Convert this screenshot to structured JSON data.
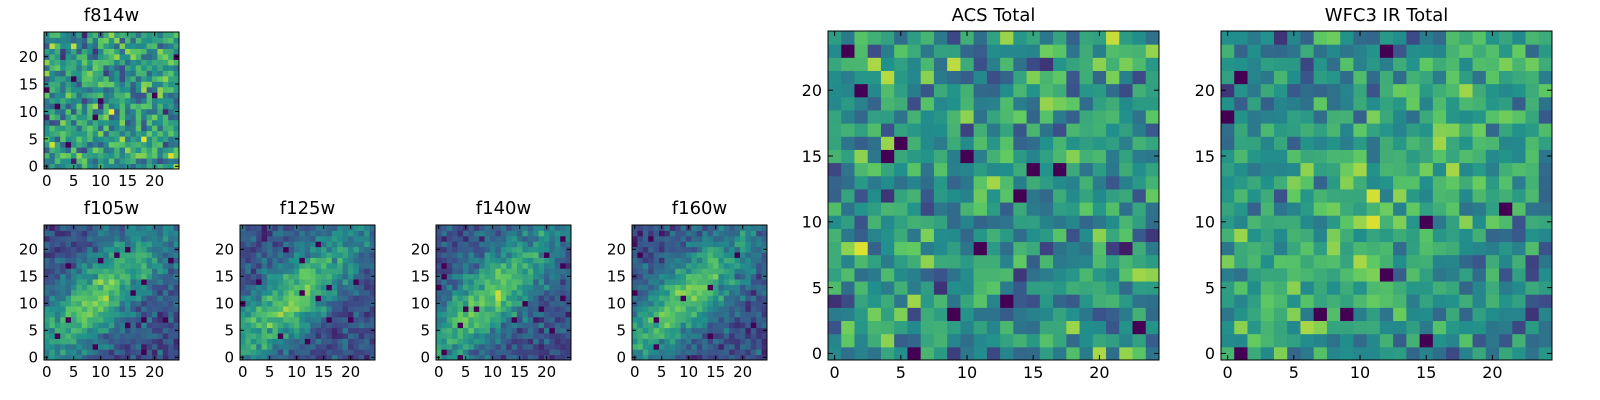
{
  "figure": {
    "colormap": "viridis",
    "colormap_stops": [
      "#440154",
      "#3b528b",
      "#21918c",
      "#5ec962",
      "#fde725"
    ]
  },
  "chart_data": [
    {
      "type": "heatmap",
      "title": "f814w",
      "grid_size": 25,
      "xlim": [
        0,
        24
      ],
      "ylim": [
        0,
        24
      ],
      "xticks": [
        0,
        5,
        10,
        15,
        20
      ],
      "yticks": [
        0,
        5,
        10,
        15,
        20
      ],
      "pattern": "noise",
      "seed": 11
    },
    {
      "type": "heatmap",
      "title": "f105w",
      "grid_size": 25,
      "xlim": [
        0,
        24
      ],
      "ylim": [
        0,
        24
      ],
      "xticks": [
        0,
        5,
        10,
        15,
        20
      ],
      "yticks": [
        0,
        5,
        10,
        15,
        20
      ],
      "pattern": "diagonal",
      "seed": 23
    },
    {
      "type": "heatmap",
      "title": "f125w",
      "grid_size": 25,
      "xlim": [
        0,
        24
      ],
      "ylim": [
        0,
        24
      ],
      "xticks": [
        0,
        5,
        10,
        15,
        20
      ],
      "yticks": [
        0,
        5,
        10,
        15,
        20
      ],
      "pattern": "diagonal",
      "seed": 37
    },
    {
      "type": "heatmap",
      "title": "f140w",
      "grid_size": 25,
      "xlim": [
        0,
        24
      ],
      "ylim": [
        0,
        24
      ],
      "xticks": [
        0,
        5,
        10,
        15,
        20
      ],
      "yticks": [
        0,
        5,
        10,
        15,
        20
      ],
      "pattern": "diagonal",
      "seed": 41
    },
    {
      "type": "heatmap",
      "title": "f160w",
      "grid_size": 25,
      "xlim": [
        0,
        24
      ],
      "ylim": [
        0,
        24
      ],
      "xticks": [
        0,
        5,
        10,
        15,
        20
      ],
      "yticks": [
        0,
        5,
        10,
        15,
        20
      ],
      "pattern": "diagonal",
      "seed": 53
    },
    {
      "type": "heatmap",
      "title": "ACS Total",
      "grid_size": 25,
      "xlim": [
        0,
        24
      ],
      "ylim": [
        0,
        24
      ],
      "xticks": [
        0,
        5,
        10,
        15,
        20
      ],
      "yticks": [
        0,
        5,
        10,
        15,
        20
      ],
      "pattern": "noise",
      "seed": 67
    },
    {
      "type": "heatmap",
      "title": "WFC3 IR Total",
      "grid_size": 25,
      "xlim": [
        0,
        24
      ],
      "ylim": [
        0,
        24
      ],
      "xticks": [
        0,
        5,
        10,
        15,
        20
      ],
      "yticks": [
        0,
        5,
        10,
        15,
        20
      ],
      "pattern": "weak-diagonal",
      "seed": 79
    }
  ]
}
